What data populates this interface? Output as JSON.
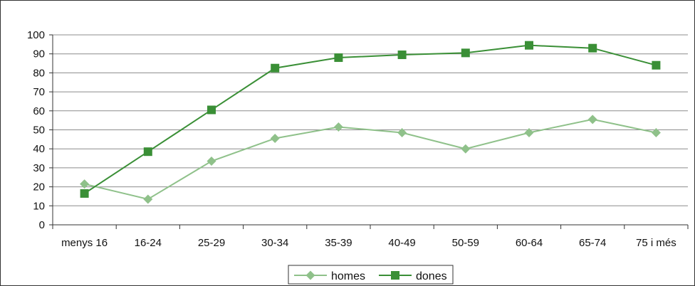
{
  "chart_data": {
    "type": "line",
    "categories": [
      "menys 16",
      "16-24",
      "25-29",
      "30-34",
      "35-39",
      "40-49",
      "50-59",
      "60-64",
      "65-74",
      "75 i més"
    ],
    "series": [
      {
        "name": "homes",
        "values": [
          21.5,
          13.5,
          33.5,
          45.5,
          51.5,
          48.5,
          40,
          48.5,
          55.5,
          48.5
        ],
        "color": "#8fc18a",
        "marker": "diamond"
      },
      {
        "name": "dones",
        "values": [
          16.5,
          38.5,
          60.5,
          82.5,
          88,
          89.5,
          90.5,
          94.5,
          93,
          84
        ],
        "color": "#3a8f36",
        "marker": "square"
      }
    ],
    "ylim": [
      0,
      100
    ],
    "yticks": [
      0,
      10,
      20,
      30,
      40,
      50,
      60,
      70,
      80,
      90,
      100
    ],
    "grid": true,
    "legend_position": "bottom"
  }
}
